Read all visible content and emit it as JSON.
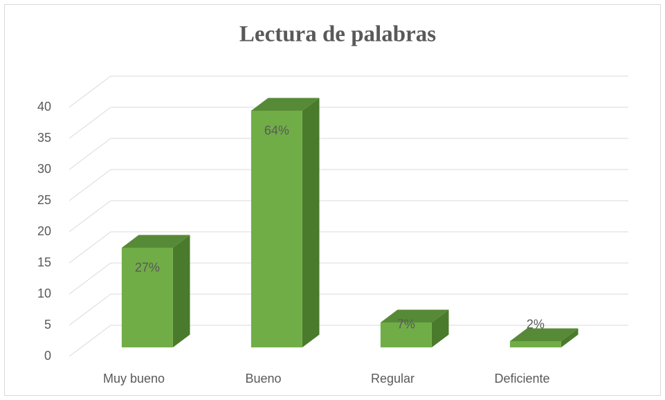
{
  "chart_data": {
    "type": "bar3d",
    "title": "Lectura de palabras",
    "categories": [
      "Muy bueno",
      "Bueno",
      "Regular",
      "Deficiente"
    ],
    "values": [
      16,
      38,
      4,
      1
    ],
    "value_labels": [
      "27%",
      "64%",
      "7%",
      "2%"
    ],
    "color": "#70ad47",
    "ylim": [
      0,
      40
    ],
    "yticks": [
      0,
      5,
      10,
      15,
      20,
      25,
      30,
      35,
      40
    ],
    "grid": true
  }
}
